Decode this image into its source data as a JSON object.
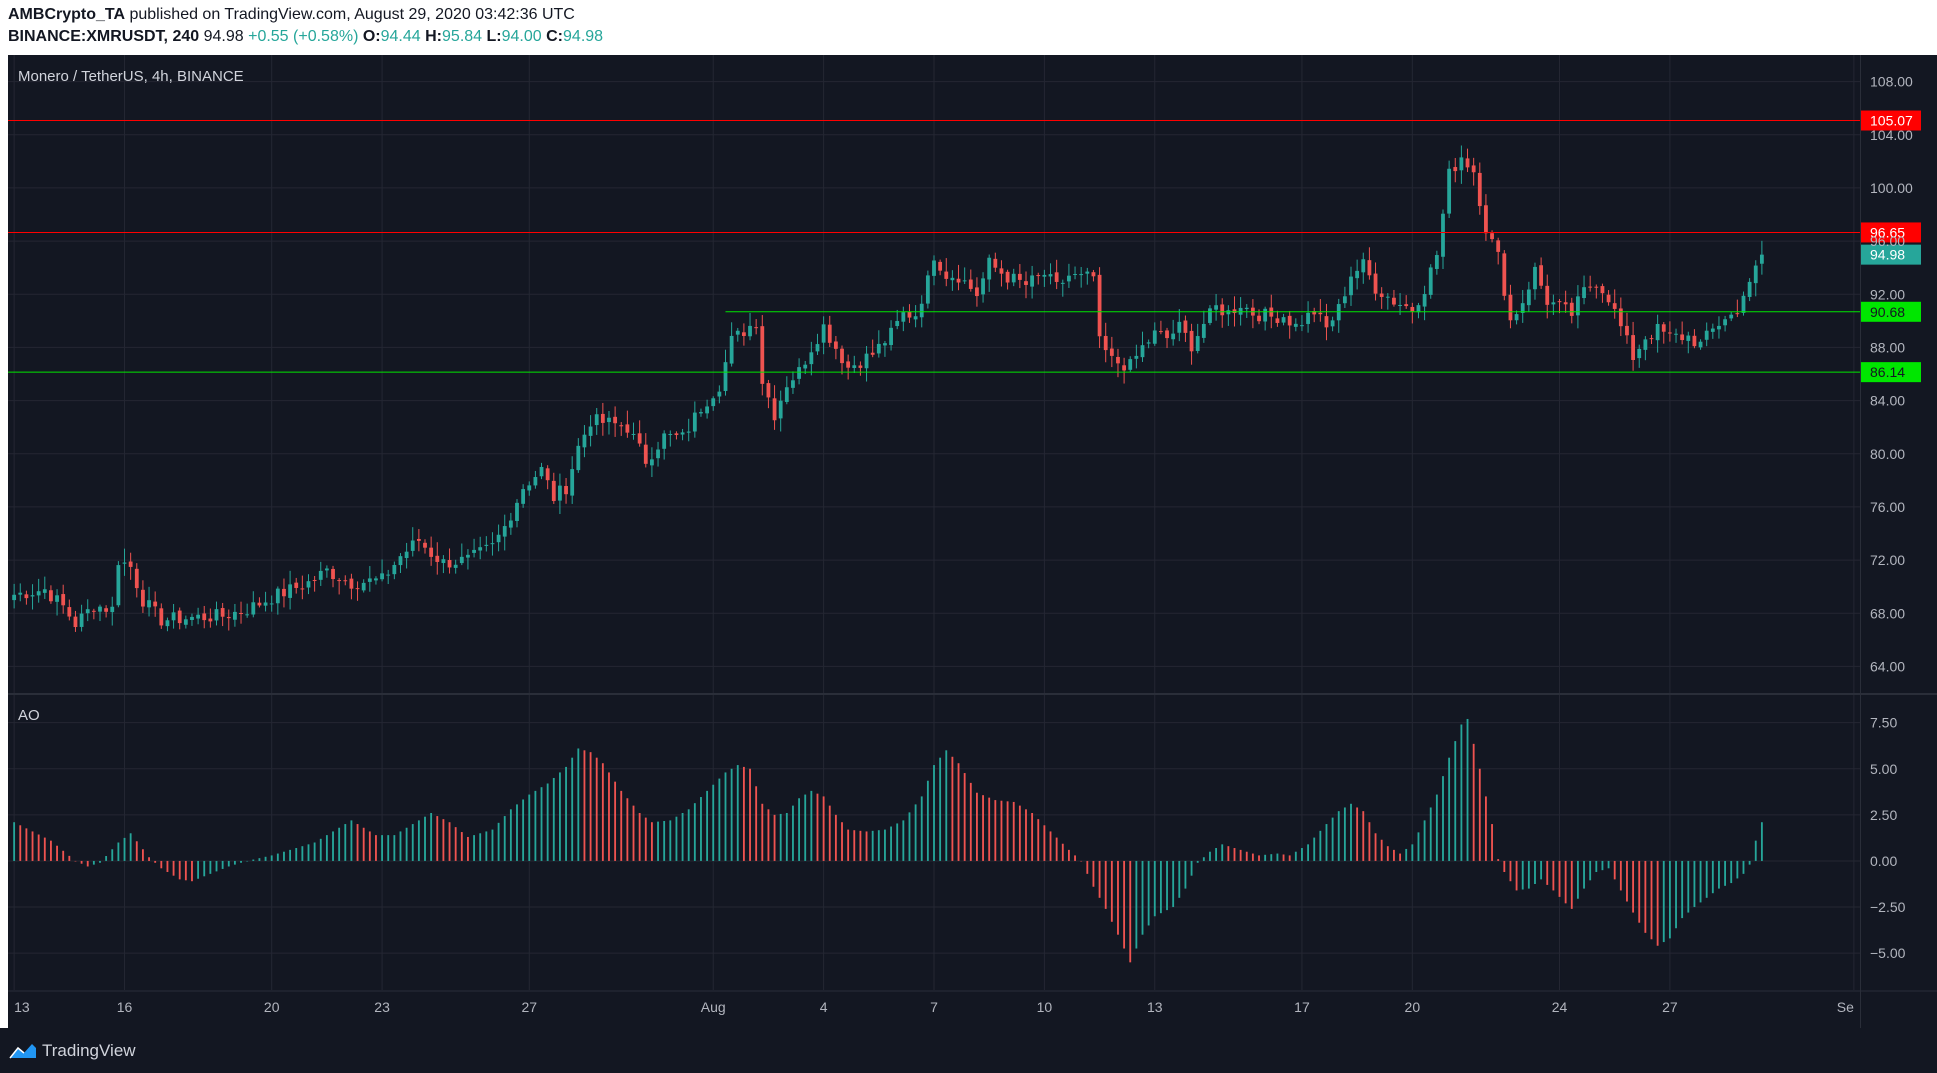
{
  "header": {
    "publisher": "AMBCrypto_TA",
    "published_text": "published on TradingView.com, August 29, 2020 03:42:36 UTC",
    "symbol": "BINANCE:XMRUSDT, 240",
    "last": "94.98",
    "change": "+0.55 (+0.58%)",
    "o_label": "O:",
    "o": "94.44",
    "h_label": "H:",
    "h": "95.84",
    "l_label": "L:",
    "l": "94.00",
    "c_label": "C:",
    "c": "94.98"
  },
  "footer": {
    "brand": "TradingView"
  },
  "colors": {
    "bg": "#131722",
    "up": "#26a69a",
    "down": "#ef5350",
    "grid": "#242733",
    "text": "#b2b5be",
    "resistance": "#ff0000",
    "support": "#00e600",
    "ao_up": "#26a69a",
    "ao_down": "#ef5350"
  },
  "chart_data": [
    {
      "type": "candlestick",
      "title": "Monero / TetherUS, 4h, BINANCE",
      "y_ticks": [
        108,
        104,
        100,
        96,
        92,
        88,
        84,
        80,
        76,
        72,
        68,
        64
      ],
      "ylim": [
        62.0,
        110.0
      ],
      "x_tick_labels": [
        {
          "label": "13",
          "bar": 0
        },
        {
          "label": "16",
          "bar": 18
        },
        {
          "label": "20",
          "bar": 42
        },
        {
          "label": "23",
          "bar": 60
        },
        {
          "label": "27",
          "bar": 84
        },
        {
          "label": "Aug",
          "bar": 114
        },
        {
          "label": "4",
          "bar": 132
        },
        {
          "label": "7",
          "bar": 150
        },
        {
          "label": "10",
          "bar": 168
        },
        {
          "label": "13",
          "bar": 186
        },
        {
          "label": "17",
          "bar": 210
        },
        {
          "label": "20",
          "bar": 228
        },
        {
          "label": "24",
          "bar": 252
        },
        {
          "label": "27",
          "bar": 270
        },
        {
          "label": "Se",
          "bar": 300
        }
      ],
      "x_range_bars": [
        -1,
        301
      ],
      "levels": [
        {
          "value": 105.07,
          "label": "105.07",
          "kind": "resistance"
        },
        {
          "value": 96.65,
          "label": "96.65",
          "kind": "resistance"
        },
        {
          "value": 90.68,
          "label": "90.68",
          "kind": "support",
          "from_bar": 116
        },
        {
          "value": 86.14,
          "label": "86.14",
          "kind": "support"
        }
      ],
      "last_price": {
        "value": 94.98,
        "label": "94.98"
      },
      "anchors": [
        [
          0,
          69.4
        ],
        [
          5,
          69.8
        ],
        [
          8,
          68.5
        ],
        [
          10,
          67.2
        ],
        [
          13,
          68.6
        ],
        [
          16,
          68.3
        ],
        [
          17,
          72.0
        ],
        [
          19,
          71.5
        ],
        [
          21,
          69.0
        ],
        [
          24,
          67.5
        ],
        [
          30,
          67.7
        ],
        [
          34,
          67.8
        ],
        [
          38,
          68.3
        ],
        [
          42,
          69.2
        ],
        [
          48,
          70.3
        ],
        [
          51,
          71.2
        ],
        [
          55,
          70.3
        ],
        [
          60,
          70.5
        ],
        [
          63,
          72.3
        ],
        [
          66,
          73.5
        ],
        [
          68,
          72.5
        ],
        [
          70,
          71.8
        ],
        [
          74,
          72.0
        ],
        [
          78,
          73.0
        ],
        [
          80,
          74.5
        ],
        [
          83,
          77.5
        ],
        [
          86,
          78.8
        ],
        [
          88,
          76.7
        ],
        [
          90,
          77.5
        ],
        [
          92,
          80.5
        ],
        [
          94,
          82.5
        ],
        [
          97,
          82.3
        ],
        [
          100,
          82.0
        ],
        [
          103,
          79.5
        ],
        [
          106,
          81.3
        ],
        [
          109,
          81.2
        ],
        [
          112,
          83.5
        ],
        [
          115,
          85.2
        ],
        [
          117,
          88.5
        ],
        [
          121,
          90.0
        ],
        [
          122,
          85.5
        ],
        [
          124,
          83.0
        ],
        [
          126,
          85.3
        ],
        [
          128,
          86.2
        ],
        [
          130,
          88.0
        ],
        [
          132,
          89.6
        ],
        [
          134,
          88.0
        ],
        [
          136,
          86.5
        ],
        [
          140,
          87.5
        ],
        [
          143,
          89.0
        ],
        [
          145,
          90.5
        ],
        [
          147,
          90.5
        ],
        [
          149,
          93.0
        ],
        [
          150,
          95.0
        ],
        [
          152,
          93.5
        ],
        [
          154,
          93.4
        ],
        [
          157,
          92.0
        ],
        [
          159,
          94.3
        ],
        [
          162,
          93.3
        ],
        [
          165,
          92.7
        ],
        [
          168,
          93.5
        ],
        [
          170,
          92.5
        ],
        [
          172,
          93.4
        ],
        [
          174,
          93.2
        ],
        [
          176,
          93.3
        ],
        [
          177,
          88.3
        ],
        [
          179,
          87.0
        ],
        [
          182,
          86.6
        ],
        [
          184,
          88.0
        ],
        [
          186,
          89.0
        ],
        [
          188,
          88.7
        ],
        [
          190,
          89.5
        ],
        [
          192,
          88.2
        ],
        [
          194,
          89.8
        ],
        [
          196,
          91.0
        ],
        [
          198,
          90.6
        ],
        [
          200,
          91.3
        ],
        [
          202,
          90.6
        ],
        [
          205,
          90.3
        ],
        [
          207,
          90.4
        ],
        [
          209,
          89.6
        ],
        [
          212,
          90.7
        ],
        [
          214,
          89.4
        ],
        [
          216,
          90.9
        ],
        [
          218,
          93.5
        ],
        [
          220,
          94.2
        ],
        [
          222,
          92.5
        ],
        [
          225,
          91.5
        ],
        [
          228,
          90.9
        ],
        [
          230,
          92.5
        ],
        [
          232,
          95.0
        ],
        [
          234,
          101.0
        ],
        [
          236,
          102.4
        ],
        [
          238,
          101.3
        ],
        [
          240,
          97.0
        ],
        [
          242,
          94.8
        ],
        [
          244,
          90.0
        ],
        [
          246,
          91.5
        ],
        [
          248,
          93.8
        ],
        [
          250,
          91.5
        ],
        [
          252,
          91.0
        ],
        [
          254,
          90.5
        ],
        [
          256,
          92.2
        ],
        [
          258,
          93.0
        ],
        [
          260,
          91.8
        ],
        [
          262,
          89.5
        ],
        [
          264,
          87.3
        ],
        [
          266,
          88.8
        ],
        [
          268,
          89.3
        ],
        [
          270,
          88.8
        ],
        [
          273,
          88.8
        ],
        [
          275,
          88.2
        ],
        [
          277,
          89.3
        ],
        [
          279,
          90.3
        ],
        [
          281,
          90.5
        ],
        [
          282,
          92.3
        ],
        [
          284,
          93.8
        ],
        [
          285,
          94.98
        ]
      ]
    },
    {
      "type": "histogram",
      "title": "AO",
      "y_ticks": [
        7.5,
        5.0,
        2.5,
        0.0,
        -2.5,
        -5.0
      ],
      "y_tick_labels": [
        "7.50",
        "5.00",
        "2.50",
        "0.00",
        "−2.50",
        "−5.00"
      ],
      "ylim": [
        -7.0,
        9.0
      ],
      "anchors": [
        [
          0,
          2.1
        ],
        [
          6,
          1.1
        ],
        [
          10,
          0.0
        ],
        [
          12,
          -0.3
        ],
        [
          14,
          -0.1
        ],
        [
          17,
          1.0
        ],
        [
          19,
          1.5
        ],
        [
          22,
          0.2
        ],
        [
          24,
          -0.4
        ],
        [
          27,
          -1.0
        ],
        [
          29,
          -1.1
        ],
        [
          32,
          -0.7
        ],
        [
          35,
          -0.3
        ],
        [
          38,
          0.0
        ],
        [
          42,
          0.3
        ],
        [
          46,
          0.7
        ],
        [
          49,
          1.0
        ],
        [
          53,
          1.8
        ],
        [
          55,
          2.2
        ],
        [
          59,
          1.4
        ],
        [
          62,
          1.4
        ],
        [
          65,
          2.0
        ],
        [
          68,
          2.6
        ],
        [
          71,
          2.1
        ],
        [
          74,
          1.3
        ],
        [
          78,
          1.7
        ],
        [
          81,
          2.8
        ],
        [
          84,
          3.6
        ],
        [
          87,
          4.2
        ],
        [
          90,
          5.1
        ],
        [
          92,
          6.1
        ],
        [
          94,
          5.9
        ],
        [
          96,
          5.3
        ],
        [
          99,
          3.8
        ],
        [
          102,
          2.6
        ],
        [
          104,
          2.1
        ],
        [
          107,
          2.2
        ],
        [
          110,
          2.8
        ],
        [
          113,
          3.8
        ],
        [
          116,
          4.8
        ],
        [
          118,
          5.2
        ],
        [
          120,
          5.0
        ],
        [
          122,
          3.1
        ],
        [
          124,
          2.5
        ],
        [
          126,
          2.6
        ],
        [
          128,
          3.4
        ],
        [
          130,
          3.8
        ],
        [
          132,
          3.5
        ],
        [
          134,
          2.5
        ],
        [
          136,
          1.7
        ],
        [
          139,
          1.6
        ],
        [
          142,
          1.7
        ],
        [
          145,
          2.2
        ],
        [
          148,
          3.5
        ],
        [
          150,
          5.2
        ],
        [
          152,
          6.0
        ],
        [
          154,
          5.3
        ],
        [
          157,
          3.7
        ],
        [
          160,
          3.3
        ],
        [
          163,
          3.2
        ],
        [
          166,
          2.6
        ],
        [
          169,
          1.6
        ],
        [
          172,
          0.6
        ],
        [
          174,
          0.0
        ],
        [
          176,
          -1.4
        ],
        [
          178,
          -2.6
        ],
        [
          180,
          -4.0
        ],
        [
          182,
          -5.5
        ],
        [
          184,
          -4.0
        ],
        [
          186,
          -3.0
        ],
        [
          189,
          -2.5
        ],
        [
          191,
          -1.5
        ],
        [
          193,
          -0.1
        ],
        [
          195,
          0.5
        ],
        [
          197,
          0.9
        ],
        [
          200,
          0.6
        ],
        [
          203,
          0.3
        ],
        [
          206,
          0.4
        ],
        [
          208,
          0.3
        ],
        [
          211,
          0.9
        ],
        [
          214,
          2.0
        ],
        [
          216,
          2.7
        ],
        [
          218,
          3.1
        ],
        [
          220,
          2.7
        ],
        [
          222,
          1.5
        ],
        [
          224,
          0.8
        ],
        [
          226,
          0.4
        ],
        [
          228,
          0.9
        ],
        [
          230,
          2.2
        ],
        [
          232,
          3.6
        ],
        [
          234,
          5.6
        ],
        [
          236,
          7.4
        ],
        [
          237,
          7.7
        ],
        [
          239,
          5.0
        ],
        [
          241,
          2.0
        ],
        [
          242,
          0.1
        ],
        [
          243,
          -0.6
        ],
        [
          245,
          -1.6
        ],
        [
          247,
          -1.5
        ],
        [
          249,
          -1.0
        ],
        [
          251,
          -1.6
        ],
        [
          253,
          -2.3
        ],
        [
          254,
          -2.6
        ],
        [
          256,
          -1.5
        ],
        [
          258,
          -0.6
        ],
        [
          260,
          -0.4
        ],
        [
          262,
          -1.6
        ],
        [
          264,
          -2.8
        ],
        [
          266,
          -3.9
        ],
        [
          268,
          -4.6
        ],
        [
          270,
          -4.2
        ],
        [
          272,
          -3.1
        ],
        [
          274,
          -2.5
        ],
        [
          276,
          -2.0
        ],
        [
          278,
          -1.5
        ],
        [
          280,
          -1.2
        ],
        [
          282,
          -0.7
        ],
        [
          283,
          -0.2
        ],
        [
          284,
          1.1
        ],
        [
          285,
          2.1
        ]
      ]
    }
  ]
}
